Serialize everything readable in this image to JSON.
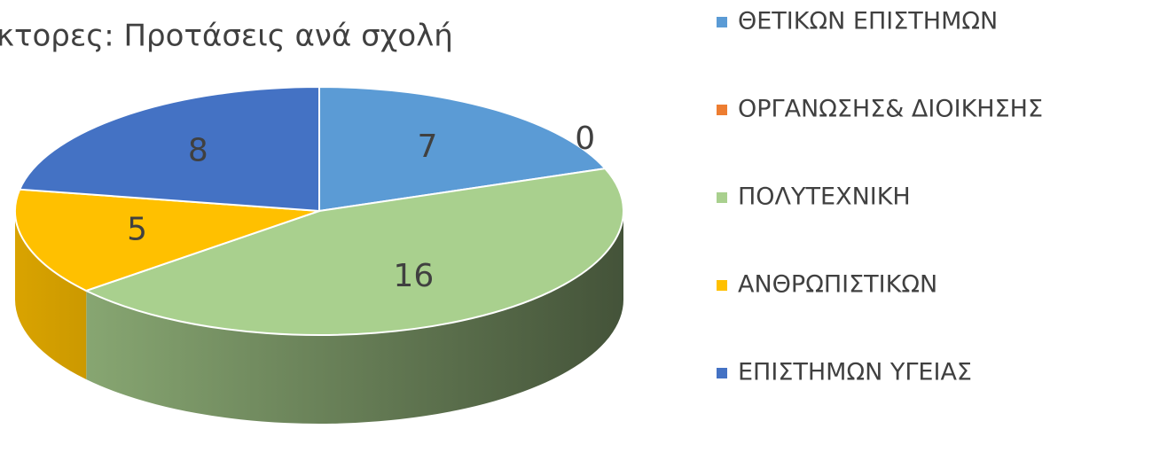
{
  "chart_data": {
    "type": "pie",
    "title": "κτορες: Προτάσεις ανά σχολή",
    "categories": [
      "ΘΕΤΙΚΩΝ ΕΠΙΣΤΗΜΩΝ",
      "ΟΡΓΑΝΩΣΗΣ& ΔΙΟΙΚΗΣΗΣ",
      "ΠΟΛΥΤΕΧΝΙΚΗ",
      "ΑΝΘΡΩΠΙΣΤΙΚΩΝ",
      "ΕΠΙΣΤΗΜΩΝ ΥΓΕΙΑΣ"
    ],
    "values": [
      7,
      0,
      16,
      5,
      8
    ],
    "colors": [
      "#5b9bd5",
      "#ed7d31",
      "#a9d08e",
      "#ffc000",
      "#4472c4"
    ],
    "legend": "right"
  }
}
